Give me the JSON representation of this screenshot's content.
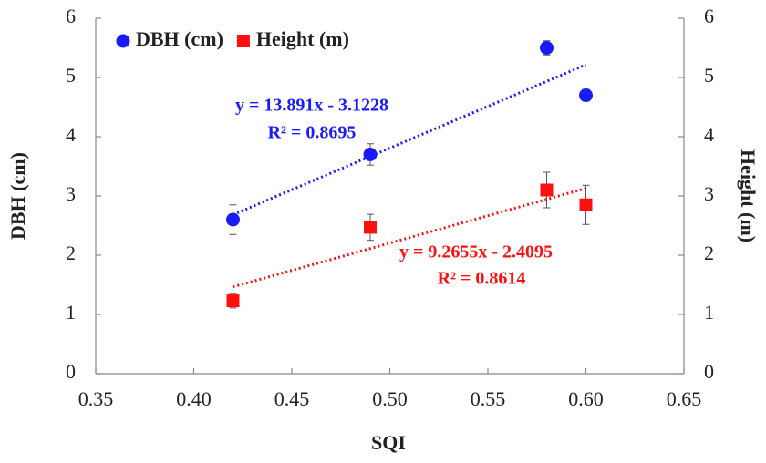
{
  "chart_data": {
    "type": "scatter",
    "xlabel": "SQI",
    "ylabel": "DBH (cm)",
    "y2label": "Height (m)",
    "xlim": [
      0.35,
      0.65
    ],
    "xticks": [
      {
        "value": 0.35,
        "label": "0.35"
      },
      {
        "value": 0.4,
        "label": "0.40"
      },
      {
        "value": 0.45,
        "label": "0.45"
      },
      {
        "value": 0.5,
        "label": "0.50"
      },
      {
        "value": 0.55,
        "label": "0.55"
      },
      {
        "value": 0.6,
        "label": "0.60"
      },
      {
        "value": 0.65,
        "label": "0.65"
      }
    ],
    "ylim": [
      0,
      6
    ],
    "yticks": [
      0,
      1,
      2,
      3,
      4,
      5,
      6
    ],
    "y2lim": [
      0,
      6
    ],
    "y2ticks": [
      0,
      1,
      2,
      3,
      4,
      5,
      6
    ],
    "x": [
      0.42,
      0.49,
      0.58,
      0.6
    ],
    "series": [
      {
        "name": "DBH (cm)",
        "color": "#1a1aff",
        "marker": "circle",
        "values": [
          2.6,
          3.7,
          5.5,
          4.7
        ],
        "errors": [
          0.25,
          0.18,
          0.12,
          0.1
        ],
        "equation": "y = 13.891x - 3.1228",
        "r2": "R² = 0.8695"
      },
      {
        "name": "Height (m)",
        "color": "#ff0f0f",
        "marker": "square",
        "axis": "y2",
        "values": [
          1.23,
          2.47,
          3.1,
          2.85
        ],
        "errors": [
          0.12,
          0.22,
          0.3,
          0.33
        ],
        "equation": "y = 9.2655x - 2.4095",
        "r2": "R² = 0.8614"
      }
    ],
    "legend": "upper left"
  }
}
